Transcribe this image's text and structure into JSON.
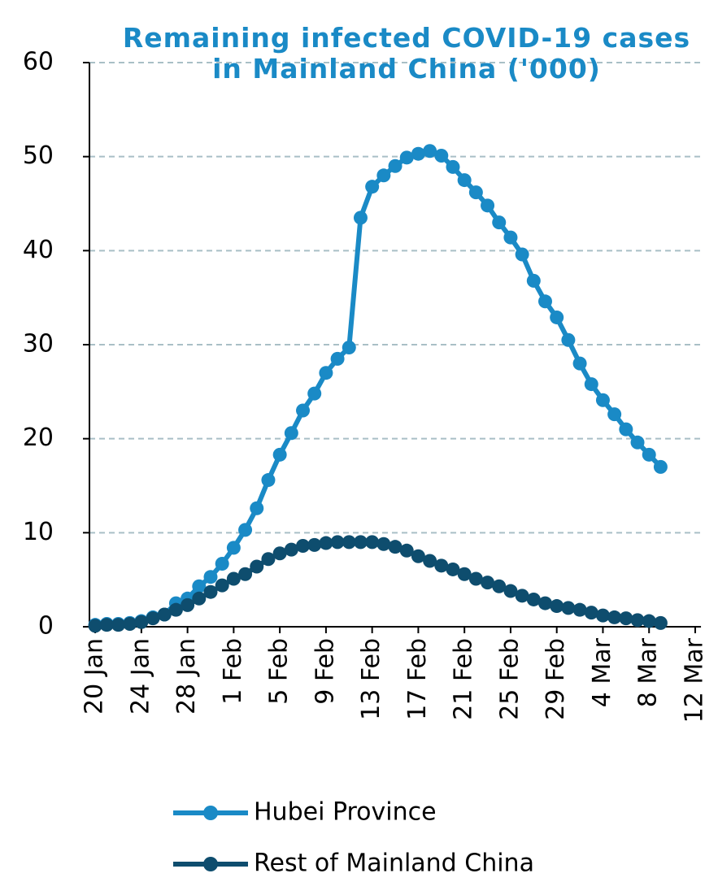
{
  "chart_data": {
    "type": "line",
    "title": "Remaining infected COVID-19 cases in Mainland China ('000)",
    "categories": [
      "20 Jan",
      null,
      null,
      null,
      "24 Jan",
      null,
      null,
      null,
      "28 Jan",
      null,
      null,
      null,
      "1 Feb",
      null,
      null,
      null,
      "5 Feb",
      null,
      null,
      null,
      "9 Feb",
      null,
      null,
      null,
      "13 Feb",
      null,
      null,
      null,
      "17 Feb",
      null,
      null,
      null,
      "21 Feb",
      null,
      null,
      null,
      "25 Feb",
      null,
      null,
      null,
      "29 Feb",
      null,
      null,
      null,
      "4 Mar",
      null,
      null,
      null,
      "8 Mar",
      null,
      null,
      null,
      "12 Mar"
    ],
    "series": [
      {
        "name": "Hubei Province",
        "color": "#1a8ac6",
        "values": [
          0.2,
          0.3,
          0.3,
          0.4,
          0.6,
          1.0,
          1.3,
          2.5,
          3.0,
          4.3,
          5.3,
          6.7,
          8.4,
          10.3,
          12.6,
          15.6,
          18.3,
          20.6,
          23.0,
          24.8,
          27.0,
          28.5,
          29.7,
          43.5,
          46.8,
          48.0,
          49.0,
          49.9,
          50.3,
          50.6,
          50.1,
          48.9,
          47.5,
          46.2,
          44.8,
          43.0,
          41.4,
          39.6,
          36.8,
          34.6,
          32.9,
          30.5,
          28.0,
          25.8,
          24.1,
          22.6,
          21.0,
          19.6,
          18.3,
          17.0,
          null,
          null,
          null
        ]
      },
      {
        "name": "Rest of Mainland China",
        "color": "#0e4d6e",
        "values": [
          0.1,
          0.2,
          0.2,
          0.3,
          0.5,
          0.9,
          1.3,
          1.8,
          2.3,
          3.0,
          3.7,
          4.4,
          5.1,
          5.6,
          6.4,
          7.2,
          7.8,
          8.2,
          8.6,
          8.7,
          8.9,
          9.0,
          9.0,
          9.0,
          9.0,
          8.8,
          8.5,
          8.1,
          7.5,
          7.0,
          6.5,
          6.1,
          5.6,
          5.1,
          4.7,
          4.3,
          3.8,
          3.3,
          2.9,
          2.5,
          2.2,
          2.0,
          1.8,
          1.5,
          1.2,
          1.0,
          0.9,
          0.7,
          0.6,
          0.4,
          null,
          null,
          null
        ]
      }
    ],
    "ylim": [
      0,
      60
    ],
    "yticks": [
      0,
      10,
      20,
      30,
      40,
      50,
      60
    ],
    "grid": true
  }
}
